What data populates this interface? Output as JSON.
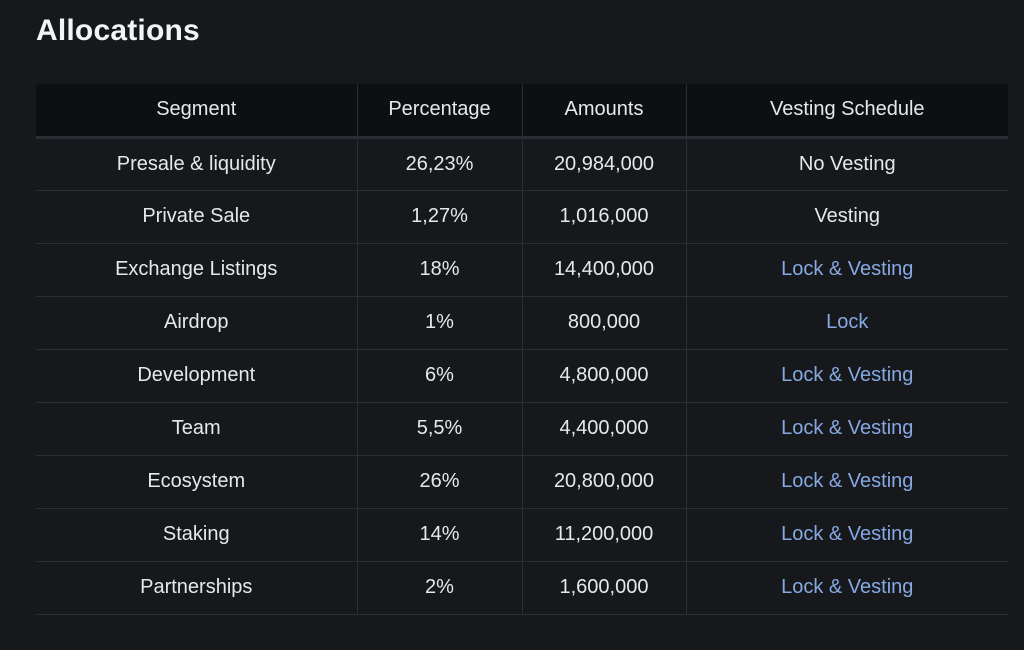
{
  "page": {
    "title": "Allocations"
  },
  "table": {
    "headers": [
      "Segment",
      "Percentage",
      "Amounts",
      "Vesting Schedule"
    ],
    "rows": [
      {
        "segment": "Presale & liquidity",
        "percentage": "26,23%",
        "amount": "20,984,000",
        "vesting": "No Vesting",
        "vesting_is_link": false
      },
      {
        "segment": "Private Sale",
        "percentage": "1,27%",
        "amount": "1,016,000",
        "vesting": "Vesting",
        "vesting_is_link": false
      },
      {
        "segment": "Exchange Listings",
        "percentage": "18%",
        "amount": "14,400,000",
        "vesting": "Lock & Vesting",
        "vesting_is_link": true
      },
      {
        "segment": "Airdrop",
        "percentage": "1%",
        "amount": "800,000",
        "vesting": "Lock",
        "vesting_is_link": true
      },
      {
        "segment": "Development",
        "percentage": "6%",
        "amount": "4,800,000",
        "vesting": "Lock & Vesting",
        "vesting_is_link": true
      },
      {
        "segment": "Team",
        "percentage": "5,5%",
        "amount": "4,400,000",
        "vesting": "Lock & Vesting",
        "vesting_is_link": true
      },
      {
        "segment": "Ecosystem",
        "percentage": "26%",
        "amount": "20,800,000",
        "vesting": "Lock & Vesting",
        "vesting_is_link": true
      },
      {
        "segment": "Staking",
        "percentage": "14%",
        "amount": "11,200,000",
        "vesting": "Lock & Vesting",
        "vesting_is_link": true
      },
      {
        "segment": "Partnerships",
        "percentage": "2%",
        "amount": "1,600,000",
        "vesting": "Lock & Vesting",
        "vesting_is_link": true
      }
    ]
  },
  "colors": {
    "background": "#16181b",
    "header_background": "#0e0f11",
    "text": "#e6e8eb",
    "link": "#86a9e3",
    "border": "#2a2e35"
  }
}
